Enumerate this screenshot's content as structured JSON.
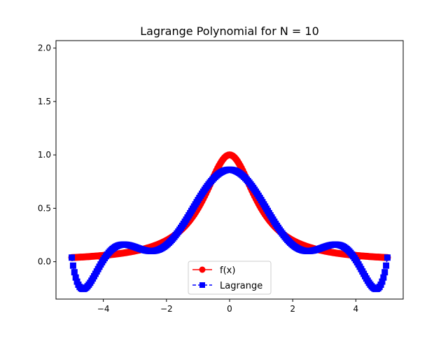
{
  "chart_data": {
    "type": "line",
    "title": "Lagrange Polynomial for N = 10",
    "xlabel": "",
    "ylabel": "",
    "xlim": [
      -5.5,
      5.5
    ],
    "ylim": [
      -0.35,
      2.07
    ],
    "x_ticks": [
      -4,
      -2,
      0,
      2,
      4
    ],
    "x_tick_labels": [
      "−4",
      "−2",
      "0",
      "2",
      "4"
    ],
    "y_ticks": [
      0.0,
      0.5,
      1.0,
      1.5,
      2.0
    ],
    "y_tick_labels": [
      "0.0",
      "0.5",
      "1.0",
      "1.5",
      "2.0"
    ],
    "grid": false,
    "legend_position": "lower center",
    "domain": [
      -5,
      5
    ],
    "sample_count": 241,
    "series": [
      {
        "name": "f(x)",
        "expression": "1/(1+x^2)",
        "color": "#ff0000",
        "linestyle": "solid",
        "marker": "circle"
      },
      {
        "name": "Lagrange",
        "interpolation_nodes": [
          -5,
          -3.8889,
          -2.7778,
          -1.6667,
          -0.5556,
          0.5556,
          1.6667,
          2.7778,
          3.8889,
          5
        ],
        "color": "#0000ff",
        "linestyle": "dashed",
        "marker": "square"
      }
    ]
  }
}
